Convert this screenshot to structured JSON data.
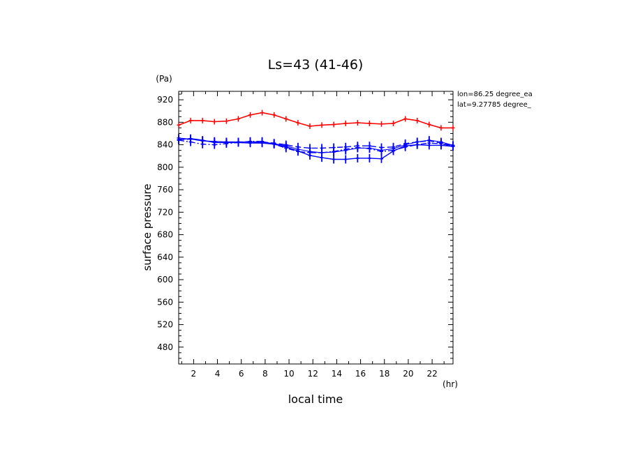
{
  "chart_data": {
    "type": "line",
    "title": "Ls=43 (41-46)",
    "xlabel": "local time",
    "ylabel": "surface pressure",
    "x_unit": "(hr)",
    "y_unit": "(Pa)",
    "xlim": [
      0.75,
      23.75
    ],
    "ylim": [
      450,
      935
    ],
    "x_ticks": [
      2,
      4,
      6,
      8,
      10,
      12,
      14,
      16,
      18,
      20,
      22
    ],
    "y_ticks": [
      480,
      520,
      560,
      600,
      640,
      680,
      720,
      760,
      800,
      840,
      880,
      920
    ],
    "annotations": [
      "lon=86.25 degree_ea",
      "lat=9.27785 degree_"
    ],
    "x": [
      0.75,
      1.75,
      2.75,
      3.75,
      4.75,
      5.75,
      6.75,
      7.75,
      8.75,
      9.75,
      10.75,
      11.75,
      12.75,
      13.75,
      14.75,
      15.75,
      16.75,
      17.75,
      18.75,
      19.75,
      20.75,
      21.75,
      22.75,
      23.75
    ],
    "series": [
      {
        "color": "#ff0000",
        "dash": "solid",
        "values": [
          875,
          883,
          883,
          881,
          882,
          886,
          893,
          897,
          893,
          886,
          879,
          873,
          875,
          876,
          878,
          879,
          878,
          877,
          878,
          886,
          883,
          876,
          870,
          870
        ]
      },
      {
        "color": "#0000ff",
        "dash": "solid",
        "values": [
          849,
          851,
          848,
          844,
          844,
          844,
          843,
          843,
          841,
          836,
          829,
          821,
          817,
          814,
          814,
          816,
          816,
          815,
          829,
          838,
          840,
          839,
          839,
          837
        ]
      },
      {
        "color": "#0000ff",
        "dash": "dash",
        "values": [
          849,
          850,
          847,
          845,
          845,
          845,
          845,
          845,
          843,
          840,
          836,
          834,
          834,
          835,
          836,
          838,
          838,
          835,
          836,
          842,
          845,
          847,
          843,
          838
        ]
      },
      {
        "color": "#0000ff",
        "dash": "dashdot",
        "values": [
          848,
          845,
          841,
          840,
          842,
          844,
          846,
          846,
          841,
          834,
          828,
          826,
          826,
          828,
          832,
          835,
          833,
          828,
          830,
          836,
          840,
          843,
          842,
          837
        ]
      },
      {
        "color": "#0000ff",
        "dash": "solid-thin",
        "values": [
          852,
          850,
          847,
          846,
          845,
          845,
          845,
          844,
          842,
          838,
          832,
          828,
          826,
          827,
          830,
          834,
          834,
          830,
          833,
          840,
          845,
          848,
          845,
          839
        ]
      }
    ]
  }
}
